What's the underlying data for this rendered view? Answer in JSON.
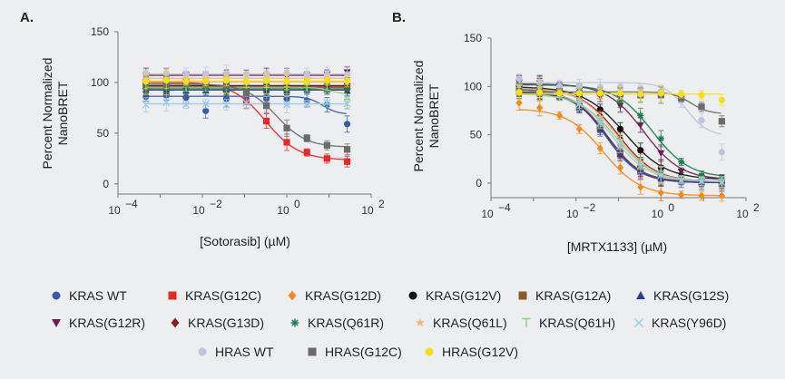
{
  "colors": {
    "background": "#edeef0",
    "axis": "#777777"
  },
  "series_styles": {
    "KRAS WT": {
      "color": "#3a5aa8",
      "marker": "circle"
    },
    "KRAS(G12C)": {
      "color": "#e8282a",
      "marker": "square"
    },
    "KRAS(G12D)": {
      "color": "#f28a1e",
      "marker": "diamond"
    },
    "KRAS(G12V)": {
      "color": "#111111",
      "marker": "circle"
    },
    "KRAS(G12A)": {
      "color": "#8c5a2b",
      "marker": "square"
    },
    "KRAS(G12S)": {
      "color": "#2e3f8f",
      "marker": "triangle"
    },
    "KRAS(G12R)": {
      "color": "#6a1f52",
      "marker": "triangle-down"
    },
    "KRAS(G13D)": {
      "color": "#8c1c24",
      "marker": "diamond"
    },
    "KRAS(Q61R)": {
      "color": "#1f7a4f",
      "marker": "star"
    },
    "KRAS(Q61L)": {
      "color": "#f2b880",
      "marker": "star5"
    },
    "KRAS(Q61H)": {
      "color": "#8ed07a",
      "marker": "tee"
    },
    "KRAS(Y96D)": {
      "color": "#9cc8e8",
      "marker": "x"
    },
    "HRAS WT": {
      "color": "#c3c1e0",
      "marker": "circle"
    },
    "HRAS(G12C)": {
      "color": "#6b6b6b",
      "marker": "square"
    },
    "HRAS(G12V)": {
      "color": "#f2df1a",
      "marker": "circle"
    }
  },
  "legend": {
    "rows": [
      [
        "KRAS WT",
        "KRAS(G12C)",
        "KRAS(G12D)",
        "KRAS(G12V)",
        "KRAS(G12A)",
        "KRAS(G12S)"
      ],
      [
        "KRAS(G12R)",
        "KRAS(G13D)",
        "KRAS(Q61R)",
        "KRAS(Q61L)",
        "KRAS(Q61H)",
        "KRAS(Y96D)"
      ],
      [
        "HRAS WT",
        "HRAS(G12C)",
        "HRAS(G12V)"
      ]
    ]
  },
  "chart_data": [
    {
      "type": "scatter",
      "panel_label": "A.",
      "title": "",
      "xlabel": "[Sotorasib] (µM)",
      "ylabel": "Percent Normalized NanoBRET",
      "ylabel_lines": [
        "Percent Normalized",
        "NanoBRET"
      ],
      "x_scale": "log",
      "xlim": [
        0.0001,
        100
      ],
      "ylim": [
        -10,
        150
      ],
      "x_ticks": [
        {
          "value": 0.0001,
          "base": "10",
          "exp": "−4"
        },
        {
          "value": 0.01,
          "base": "10",
          "exp": "−2"
        },
        {
          "value": 1,
          "base": "10",
          "exp": "0"
        },
        {
          "value": 100,
          "base": "10",
          "exp": "2"
        }
      ],
      "y_ticks": [
        0,
        50,
        100,
        150
      ],
      "grid": false,
      "legend": "bottom",
      "x": [
        0.00046,
        0.0014,
        0.0041,
        0.012,
        0.037,
        0.11,
        0.33,
        1,
        3,
        9,
        27
      ],
      "series": [
        {
          "name": "KRAS WT",
          "values": [
            86,
            88,
            85,
            72,
            84,
            84,
            84,
            84,
            82,
            78,
            59
          ]
        },
        {
          "name": "KRAS(G12C)",
          "values": [
            100,
            101,
            100,
            99,
            95,
            81,
            62,
            41,
            31,
            25,
            22
          ]
        },
        {
          "name": "KRAS(G12D)",
          "values": [
            102,
            100,
            103,
            101,
            100,
            101,
            102,
            100,
            101,
            100,
            99
          ]
        },
        {
          "name": "KRAS(G12V)",
          "values": [
            98,
            97,
            96,
            97,
            96,
            96,
            97,
            96,
            97,
            97,
            98
          ]
        },
        {
          "name": "KRAS(G12A)",
          "values": [
            96,
            95,
            96,
            95,
            94,
            95,
            95,
            94,
            95,
            96,
            95
          ]
        },
        {
          "name": "KRAS(G12S)",
          "values": [
            93,
            93,
            92,
            92,
            93,
            92,
            93,
            92,
            93,
            93,
            92
          ]
        },
        {
          "name": "KRAS(G12R)",
          "values": [
            107,
            106,
            107,
            106,
            107,
            106,
            107,
            106,
            107,
            108,
            110
          ]
        },
        {
          "name": "KRAS(G13D)",
          "values": [
            97,
            96,
            97,
            96,
            96,
            96,
            97,
            96,
            96,
            97,
            96
          ]
        },
        {
          "name": "KRAS(Q61R)",
          "values": [
            94,
            94,
            93,
            94,
            93,
            94,
            94,
            93,
            94,
            93,
            94
          ]
        },
        {
          "name": "KRAS(Q61L)",
          "values": [
            104,
            105,
            104,
            104,
            105,
            104,
            104,
            104,
            105,
            104,
            103
          ]
        },
        {
          "name": "KRAS(Q61H)",
          "values": [
            95,
            96,
            95,
            96,
            95,
            95,
            96,
            95,
            95,
            96,
            80
          ]
        },
        {
          "name": "KRAS(Y96D)",
          "values": [
            78,
            80,
            78,
            79,
            78,
            80,
            79,
            78,
            79,
            80,
            79
          ]
        },
        {
          "name": "HRAS WT",
          "values": [
            108,
            109,
            108,
            108,
            109,
            108,
            108,
            109,
            108,
            108,
            108
          ]
        },
        {
          "name": "HRAS(G12C)",
          "values": [
            99,
            98,
            99,
            98,
            97,
            90,
            77,
            55,
            45,
            38,
            34
          ]
        },
        {
          "name": "HRAS(G12V)",
          "values": [
            101,
            102,
            101,
            101,
            102,
            101,
            102,
            101,
            101,
            102,
            101
          ]
        }
      ]
    },
    {
      "type": "scatter",
      "panel_label": "B.",
      "title": "",
      "xlabel": "[MRTX1133] (µM)",
      "ylabel": "Percent Normalized NanoBRET",
      "ylabel_lines": [
        "Percent Normalized",
        "NanoBRET"
      ],
      "x_scale": "log",
      "xlim": [
        0.0001,
        100
      ],
      "ylim": [
        -15,
        150
      ],
      "x_ticks": [
        {
          "value": 0.0001,
          "base": "10",
          "exp": "−4"
        },
        {
          "value": 0.01,
          "base": "10",
          "exp": "−2"
        },
        {
          "value": 1,
          "base": "10",
          "exp": "0"
        },
        {
          "value": 100,
          "base": "10",
          "exp": "2"
        }
      ],
      "y_ticks": [
        0,
        50,
        100,
        150
      ],
      "grid": false,
      "legend": "bottom",
      "x": [
        0.00046,
        0.0014,
        0.0041,
        0.012,
        0.037,
        0.11,
        0.33,
        1,
        3,
        9,
        27
      ],
      "series": [
        {
          "name": "KRAS WT",
          "values": [
            100,
            97,
            93,
            80,
            57,
            30,
            12,
            5,
            2,
            1,
            0
          ]
        },
        {
          "name": "KRAS(G12C)",
          "values": [
            99,
            96,
            92,
            80,
            58,
            32,
            14,
            6,
            3,
            1,
            1
          ]
        },
        {
          "name": "KRAS(G12D)",
          "values": [
            83,
            78,
            70,
            56,
            36,
            16,
            -4,
            -10,
            -12,
            -13,
            -13
          ]
        },
        {
          "name": "KRAS(G12V)",
          "values": [
            102,
            100,
            97,
            90,
            76,
            56,
            34,
            16,
            7,
            4,
            3
          ]
        },
        {
          "name": "KRAS(G12A)",
          "values": [
            98,
            95,
            91,
            79,
            58,
            33,
            15,
            6,
            3,
            2,
            1
          ]
        },
        {
          "name": "KRAS(G12S)",
          "values": [
            97,
            95,
            90,
            78,
            56,
            30,
            12,
            5,
            2,
            1,
            0
          ]
        },
        {
          "name": "KRAS(G12R)",
          "values": [
            104,
            103,
            101,
            97,
            90,
            80,
            60,
            31,
            12,
            5,
            2
          ]
        },
        {
          "name": "KRAS(G13D)",
          "values": [
            100,
            98,
            95,
            87,
            70,
            46,
            24,
            10,
            4,
            2,
            1
          ]
        },
        {
          "name": "KRAS(Q61R)",
          "values": [
            103,
            102,
            100,
            98,
            93,
            85,
            70,
            46,
            22,
            8,
            3
          ]
        },
        {
          "name": "KRAS(Q61L)",
          "values": [
            101,
            99,
            95,
            86,
            68,
            44,
            22,
            9,
            4,
            2,
            1
          ]
        },
        {
          "name": "KRAS(Q61H)",
          "values": [
            95,
            93,
            89,
            80,
            64,
            42,
            22,
            9,
            4,
            2,
            1
          ]
        },
        {
          "name": "KRAS(Y96D)",
          "values": [
            99,
            97,
            92,
            82,
            62,
            38,
            18,
            8,
            3,
            2,
            1
          ]
        },
        {
          "name": "HRAS WT",
          "values": [
            108,
            104,
            100,
            100,
            99,
            99,
            98,
            95,
            85,
            65,
            32
          ]
        },
        {
          "name": "HRAS(G12C)",
          "values": [
            95,
            94,
            94,
            93,
            93,
            92,
            91,
            91,
            88,
            79,
            64
          ]
        },
        {
          "name": "HRAS(G12V)",
          "values": [
            94,
            94,
            93,
            93,
            93,
            93,
            92,
            93,
            92,
            91,
            86
          ]
        }
      ]
    }
  ]
}
